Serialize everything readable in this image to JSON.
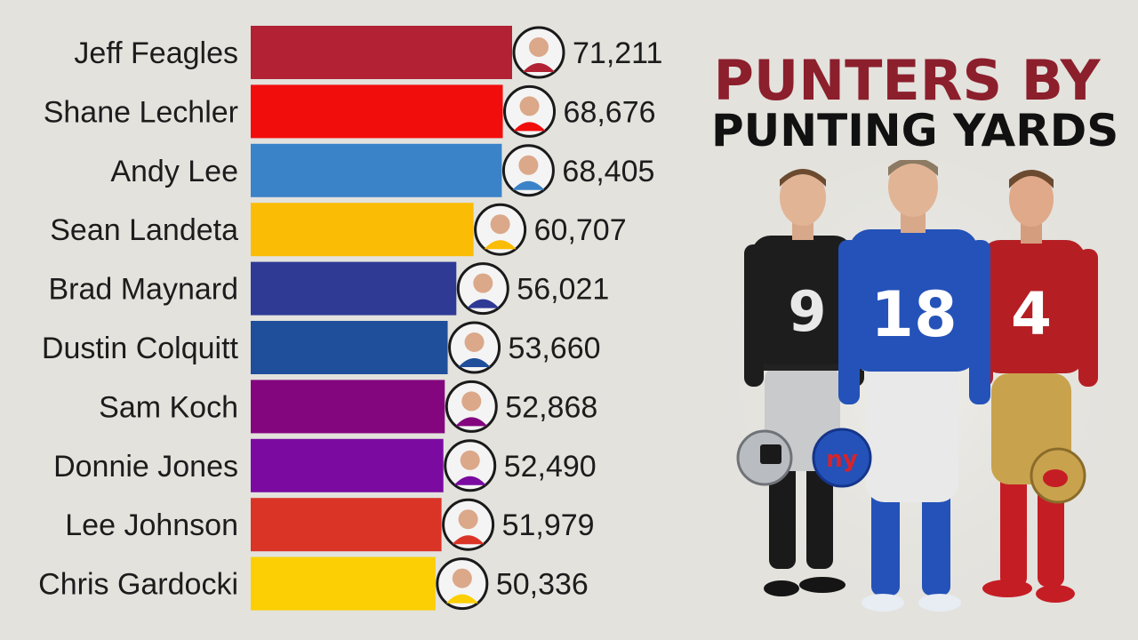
{
  "title": {
    "line1": "PUNTERS BY",
    "line2": "PUNTING YARDS"
  },
  "chart_data": {
    "type": "bar",
    "orientation": "horizontal",
    "categories": [
      "Jeff Feagles",
      "Shane Lechler",
      "Andy Lee",
      "Sean Landeta",
      "Brad Maynard",
      "Dustin Colquitt",
      "Sam Koch",
      "Donnie Jones",
      "Lee Johnson",
      "Chris Gardocki"
    ],
    "values": [
      71211,
      68676,
      68405,
      60707,
      56021,
      53660,
      52868,
      52490,
      51979,
      50336
    ],
    "value_labels": [
      "71,211",
      "68,676",
      "68,405",
      "60,707",
      "56,021",
      "53,660",
      "52,868",
      "52,490",
      "51,979",
      "50,336"
    ],
    "colors": [
      "#b22234",
      "#f20d0d",
      "#3b83c8",
      "#fbbc05",
      "#2f3a95",
      "#1f4e9a",
      "#83067f",
      "#7b0aa1",
      "#da3427",
      "#fbcf03"
    ],
    "xlim": [
      0,
      71211
    ],
    "grid": false,
    "legend": "none"
  },
  "illustration": {
    "players": [
      {
        "team": "raiders",
        "number": "9",
        "jersey": "#1d1d1d",
        "pants": "#c9cacc",
        "numberColor": "#e8e8e8"
      },
      {
        "team": "giants",
        "number": "18",
        "jersey": "#2452b8",
        "pants": "#e9e9ea",
        "numberColor": "#ffffff"
      },
      {
        "team": "49ers",
        "number": "4",
        "jersey": "#b51f24",
        "pants": "#c9a24e",
        "numberColor": "#ffffff"
      }
    ]
  }
}
